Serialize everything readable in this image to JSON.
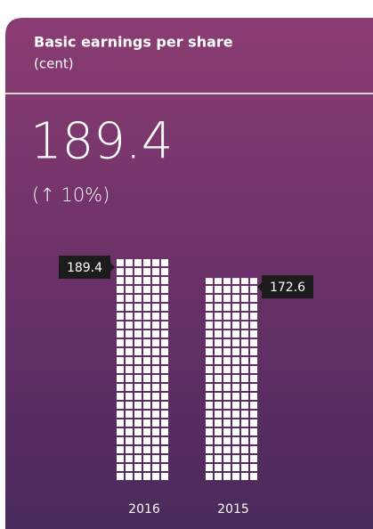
{
  "chart_data": {
    "type": "bar",
    "title": "Basic earnings per share",
    "subtitle": "(cent)",
    "headline": "189.4",
    "change": "(↑ 10%)",
    "categories": [
      "2016",
      "2015"
    ],
    "values": [
      189.4,
      172.6
    ],
    "color": "#ffffff"
  }
}
